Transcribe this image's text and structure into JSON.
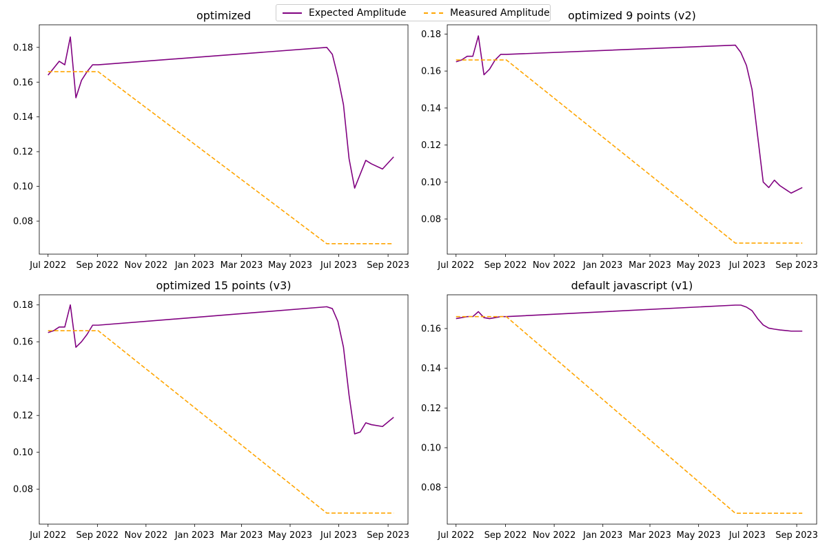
{
  "colors": {
    "expected": "#800080",
    "measured": "#FFA500",
    "axis": "#000000",
    "background": "#ffffff"
  },
  "legend": {
    "placement": "top-center",
    "entries": [
      {
        "label": "Expected Amplitude",
        "style": "solid",
        "color": "#800080"
      },
      {
        "label": "Measured Amplitude",
        "style": "dashed",
        "color": "#FFA500"
      }
    ]
  },
  "chart_data": [
    {
      "type": "line",
      "title": "optimized",
      "xlabel": "",
      "ylabel": "",
      "x_type": "date",
      "xlim": [
        "2022-06-20",
        "2023-09-26"
      ],
      "ylim": [
        0.061,
        0.193
      ],
      "grid": false,
      "xticks": [
        {
          "date": "2022-07-01",
          "label": "Jul 2022"
        },
        {
          "date": "2022-09-01",
          "label": "Sep 2022"
        },
        {
          "date": "2022-11-01",
          "label": "Nov 2022"
        },
        {
          "date": "2023-01-01",
          "label": "Jan 2023"
        },
        {
          "date": "2023-03-01",
          "label": "Mar 2023"
        },
        {
          "date": "2023-05-01",
          "label": "May 2023"
        },
        {
          "date": "2023-07-01",
          "label": "Jul 2023"
        },
        {
          "date": "2023-09-01",
          "label": "Sep 2023"
        }
      ],
      "yticks": [
        0.08,
        0.1,
        0.12,
        0.14,
        0.16,
        0.18
      ],
      "ytick_labels": [
        "0.08",
        "0.10",
        "0.12",
        "0.14",
        "0.16",
        "0.18"
      ],
      "series": [
        {
          "name": "Expected Amplitude",
          "style": "solid",
          "color": "#800080",
          "x": [
            "2022-07-01",
            "2022-07-08",
            "2022-07-15",
            "2022-07-22",
            "2022-07-29",
            "2022-08-05",
            "2022-08-12",
            "2022-08-19",
            "2022-08-26",
            "2022-09-02",
            "2023-06-16",
            "2023-06-23",
            "2023-06-30",
            "2023-07-07",
            "2023-07-14",
            "2023-07-21",
            "2023-07-28",
            "2023-08-04",
            "2023-08-11",
            "2023-08-25",
            "2023-09-08"
          ],
          "y": [
            0.164,
            0.168,
            0.172,
            0.17,
            0.186,
            0.151,
            0.161,
            0.166,
            0.17,
            0.17,
            0.18,
            0.176,
            0.163,
            0.147,
            0.116,
            0.099,
            0.107,
            0.115,
            0.113,
            0.11,
            0.117
          ]
        },
        {
          "name": "Measured Amplitude",
          "style": "dashed",
          "color": "#FFA500",
          "x": [
            "2022-07-01",
            "2022-09-02",
            "2023-06-16",
            "2023-09-08"
          ],
          "y": [
            0.166,
            0.166,
            0.067,
            0.067
          ]
        }
      ]
    },
    {
      "type": "line",
      "title": "optimized 9 points (v2)",
      "xlabel": "",
      "ylabel": "",
      "x_type": "date",
      "xlim": [
        "2022-06-20",
        "2023-09-26"
      ],
      "ylim": [
        0.061,
        0.185
      ],
      "grid": false,
      "xticks": [
        {
          "date": "2022-07-01",
          "label": "Jul 2022"
        },
        {
          "date": "2022-09-01",
          "label": "Sep 2022"
        },
        {
          "date": "2022-11-01",
          "label": "Nov 2022"
        },
        {
          "date": "2023-01-01",
          "label": "Jan 2023"
        },
        {
          "date": "2023-03-01",
          "label": "Mar 2023"
        },
        {
          "date": "2023-05-01",
          "label": "May 2023"
        },
        {
          "date": "2023-07-01",
          "label": "Jul 2023"
        },
        {
          "date": "2023-09-01",
          "label": "Sep 2023"
        }
      ],
      "yticks": [
        0.08,
        0.1,
        0.12,
        0.14,
        0.16,
        0.18
      ],
      "ytick_labels": [
        "0.08",
        "0.10",
        "0.12",
        "0.14",
        "0.16",
        "0.18"
      ],
      "series": [
        {
          "name": "Expected Amplitude",
          "style": "solid",
          "color": "#800080",
          "x": [
            "2022-07-01",
            "2022-07-08",
            "2022-07-15",
            "2022-07-22",
            "2022-07-29",
            "2022-08-05",
            "2022-08-12",
            "2022-08-19",
            "2022-08-26",
            "2022-09-02",
            "2023-06-16",
            "2023-06-23",
            "2023-06-30",
            "2023-07-07",
            "2023-07-14",
            "2023-07-21",
            "2023-07-28",
            "2023-08-04",
            "2023-08-11",
            "2023-08-25",
            "2023-09-08"
          ],
          "y": [
            0.165,
            0.166,
            0.168,
            0.168,
            0.179,
            0.158,
            0.161,
            0.166,
            0.169,
            0.169,
            0.174,
            0.17,
            0.163,
            0.15,
            0.125,
            0.1,
            0.097,
            0.101,
            0.098,
            0.094,
            0.097
          ]
        },
        {
          "name": "Measured Amplitude",
          "style": "dashed",
          "color": "#FFA500",
          "x": [
            "2022-07-01",
            "2022-09-02",
            "2023-06-16",
            "2023-09-08"
          ],
          "y": [
            0.166,
            0.166,
            0.067,
            0.067
          ]
        }
      ]
    },
    {
      "type": "line",
      "title": "optimized 15 points (v3)",
      "xlabel": "",
      "ylabel": "",
      "x_type": "date",
      "xlim": [
        "2022-06-20",
        "2023-09-26"
      ],
      "ylim": [
        0.061,
        0.1855
      ],
      "grid": false,
      "xticks": [
        {
          "date": "2022-07-01",
          "label": "Jul 2022"
        },
        {
          "date": "2022-09-01",
          "label": "Sep 2022"
        },
        {
          "date": "2022-11-01",
          "label": "Nov 2022"
        },
        {
          "date": "2023-01-01",
          "label": "Jan 2023"
        },
        {
          "date": "2023-03-01",
          "label": "Mar 2023"
        },
        {
          "date": "2023-05-01",
          "label": "May 2023"
        },
        {
          "date": "2023-07-01",
          "label": "Jul 2023"
        },
        {
          "date": "2023-09-01",
          "label": "Sep 2023"
        }
      ],
      "yticks": [
        0.08,
        0.1,
        0.12,
        0.14,
        0.16,
        0.18
      ],
      "ytick_labels": [
        "0.08",
        "0.10",
        "0.12",
        "0.14",
        "0.16",
        "0.18"
      ],
      "series": [
        {
          "name": "Expected Amplitude",
          "style": "solid",
          "color": "#800080",
          "x": [
            "2022-07-01",
            "2022-07-08",
            "2022-07-15",
            "2022-07-22",
            "2022-07-29",
            "2022-08-05",
            "2022-08-12",
            "2022-08-19",
            "2022-08-26",
            "2022-09-02",
            "2023-06-16",
            "2023-06-23",
            "2023-06-30",
            "2023-07-07",
            "2023-07-14",
            "2023-07-21",
            "2023-07-28",
            "2023-08-04",
            "2023-08-11",
            "2023-08-25",
            "2023-09-08"
          ],
          "y": [
            0.165,
            0.166,
            0.168,
            0.168,
            0.18,
            0.157,
            0.16,
            0.164,
            0.169,
            0.169,
            0.179,
            0.178,
            0.171,
            0.157,
            0.131,
            0.11,
            0.111,
            0.116,
            0.115,
            0.114,
            0.119
          ]
        },
        {
          "name": "Measured Amplitude",
          "style": "dashed",
          "color": "#FFA500",
          "x": [
            "2022-07-01",
            "2022-09-02",
            "2023-06-16",
            "2023-09-08"
          ],
          "y": [
            0.166,
            0.166,
            0.067,
            0.067
          ]
        }
      ]
    },
    {
      "type": "line",
      "title": "default javascript (v1)",
      "xlabel": "",
      "ylabel": "",
      "x_type": "date",
      "xlim": [
        "2022-06-20",
        "2023-09-26"
      ],
      "ylim": [
        0.0615,
        0.177
      ],
      "grid": false,
      "xticks": [
        {
          "date": "2022-07-01",
          "label": "Jul 2022"
        },
        {
          "date": "2022-09-01",
          "label": "Sep 2022"
        },
        {
          "date": "2022-11-01",
          "label": "Nov 2022"
        },
        {
          "date": "2023-01-01",
          "label": "Jan 2023"
        },
        {
          "date": "2023-03-01",
          "label": "Mar 2023"
        },
        {
          "date": "2023-05-01",
          "label": "May 2023"
        },
        {
          "date": "2023-07-01",
          "label": "Jul 2023"
        },
        {
          "date": "2023-09-01",
          "label": "Sep 2023"
        }
      ],
      "yticks": [
        0.08,
        0.1,
        0.12,
        0.14,
        0.16
      ],
      "ytick_labels": [
        "0.08",
        "0.10",
        "0.12",
        "0.14",
        "0.16"
      ],
      "series": [
        {
          "name": "Expected Amplitude",
          "style": "solid",
          "color": "#800080",
          "x": [
            "2022-07-01",
            "2022-07-08",
            "2022-07-15",
            "2022-07-22",
            "2022-07-29",
            "2022-08-05",
            "2022-08-12",
            "2022-08-19",
            "2022-08-26",
            "2022-09-02",
            "2023-06-16",
            "2023-06-23",
            "2023-06-30",
            "2023-07-07",
            "2023-07-14",
            "2023-07-21",
            "2023-07-28",
            "2023-08-04",
            "2023-08-11",
            "2023-08-25",
            "2023-09-08"
          ],
          "y": [
            0.165,
            0.1655,
            0.166,
            0.166,
            0.1685,
            0.1655,
            0.165,
            0.1655,
            0.166,
            0.166,
            0.1718,
            0.1718,
            0.1708,
            0.169,
            0.165,
            0.1618,
            0.1602,
            0.1597,
            0.1593,
            0.1587,
            0.1587
          ]
        },
        {
          "name": "Measured Amplitude",
          "style": "dashed",
          "color": "#FFA500",
          "x": [
            "2022-07-01",
            "2022-09-02",
            "2023-06-16",
            "2023-09-08"
          ],
          "y": [
            0.166,
            0.166,
            0.067,
            0.067
          ]
        }
      ]
    }
  ]
}
